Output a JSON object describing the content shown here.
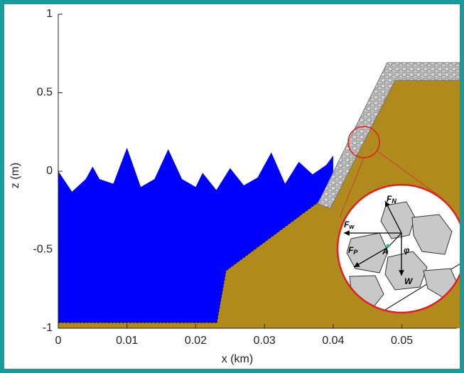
{
  "chart_data": {
    "type": "area",
    "xlabel": "x (km)",
    "ylabel": "z (m)",
    "x": [
      0,
      0.002,
      0.004,
      0.005,
      0.006,
      0.008,
      0.01,
      0.012,
      0.014,
      0.016,
      0.018,
      0.02,
      0.021,
      0.023,
      0.025,
      0.027,
      0.029,
      0.031,
      0.033,
      0.035,
      0.037,
      0.039,
      0.04
    ],
    "values": [
      0,
      -0.13,
      -0.05,
      0.03,
      -0.05,
      -0.08,
      0.15,
      -0.1,
      -0.05,
      0.14,
      -0.05,
      -0.1,
      -0.01,
      -0.12,
      0.02,
      -0.09,
      -0.04,
      0.12,
      -0.08,
      0.06,
      -0.02,
      0.04,
      0.1
    ],
    "color": "#0000ff",
    "xlim": [
      0,
      0.058
    ],
    "ylim": [
      -1,
      1
    ],
    "xticks": [
      0,
      0.01,
      0.02,
      0.03,
      0.04,
      0.05
    ],
    "yticks": [
      -1,
      -0.5,
      0,
      0.5,
      1
    ],
    "annotations": [
      {
        "main": "F",
        "sub": "N"
      },
      {
        "main": "F",
        "sub": "w"
      },
      {
        "main": "F",
        "sub": "P"
      },
      {
        "main": "A"
      },
      {
        "main": "φ"
      },
      {
        "main": "W"
      }
    ]
  }
}
